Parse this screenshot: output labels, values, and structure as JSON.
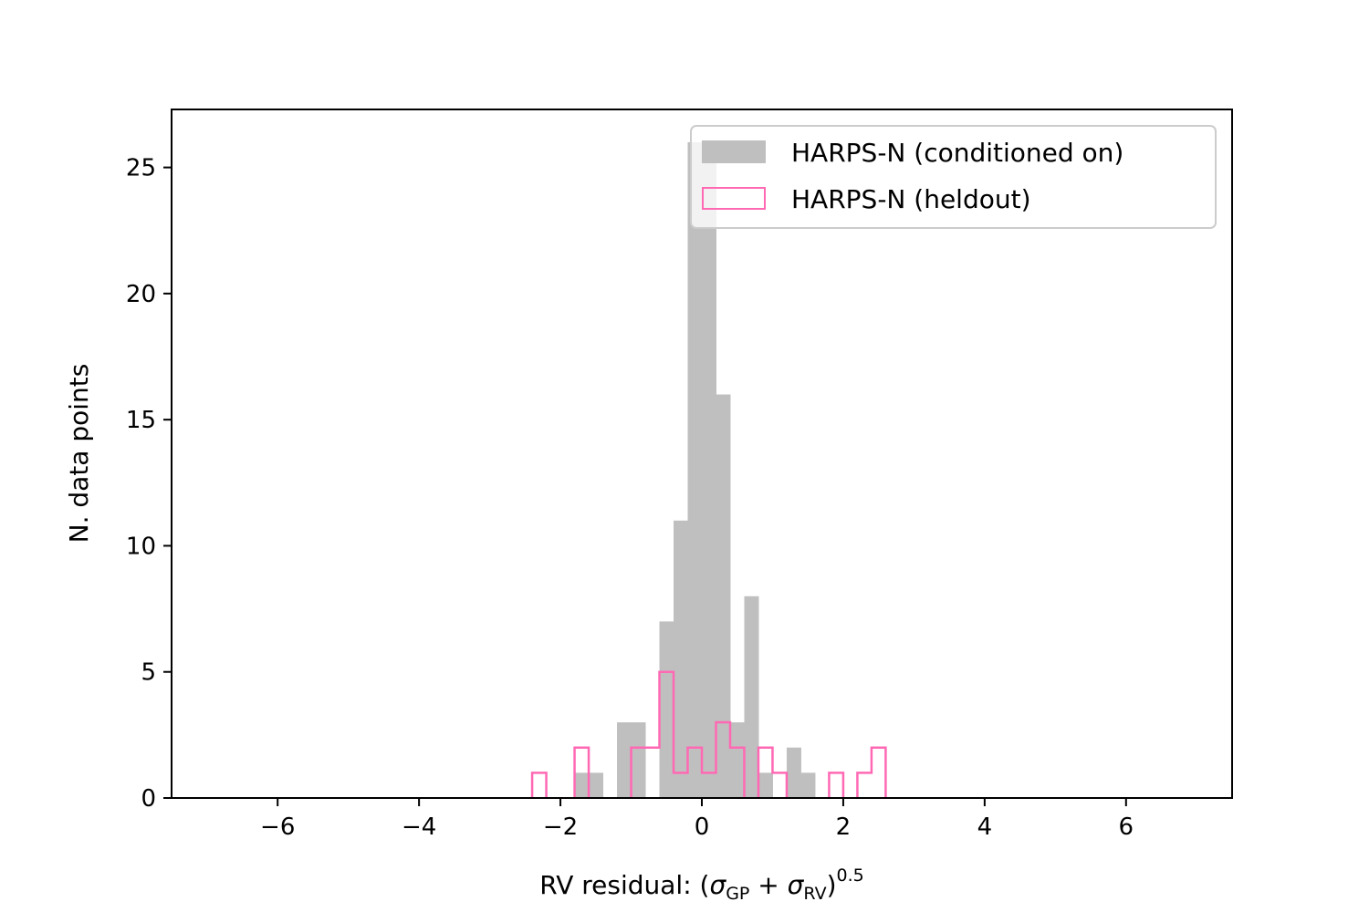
{
  "chart_data": {
    "type": "histogram",
    "xlabel": {
      "prefix": "RV residual: (",
      "sigma1": "σ",
      "sub1": "GP",
      "plus": " + ",
      "sigma2": "σ",
      "sub2": "RV",
      "close": ")",
      "exponent": "0.5"
    },
    "ylabel": "N. data points",
    "xlim": [
      -7.5,
      7.5
    ],
    "ylim": [
      0,
      27.3
    ],
    "xticks": [
      -6,
      -4,
      -2,
      0,
      2,
      4,
      6
    ],
    "xtick_labels": [
      "−6",
      "−4",
      "−2",
      "0",
      "2",
      "4",
      "6"
    ],
    "yticks": [
      0,
      5,
      10,
      15,
      20,
      25
    ],
    "ytick_labels": [
      "0",
      "5",
      "10",
      "15",
      "20",
      "25"
    ],
    "legend_position": "top-right",
    "series": [
      {
        "name": "HARPS-N (conditioned on)",
        "style": "filled",
        "color": "#bfbfbf",
        "bins": [
          {
            "x0": -1.8,
            "x1": -1.6,
            "count": 1
          },
          {
            "x0": -1.6,
            "x1": -1.4,
            "count": 1
          },
          {
            "x0": -1.2,
            "x1": -1.0,
            "count": 3
          },
          {
            "x0": -1.0,
            "x1": -0.8,
            "count": 3
          },
          {
            "x0": -0.6,
            "x1": -0.4,
            "count": 7
          },
          {
            "x0": -0.4,
            "x1": -0.2,
            "count": 11
          },
          {
            "x0": -0.2,
            "x1": 0.0,
            "count": 26
          },
          {
            "x0": 0.0,
            "x1": 0.2,
            "count": 26
          },
          {
            "x0": 0.2,
            "x1": 0.4,
            "count": 16
          },
          {
            "x0": 0.4,
            "x1": 0.6,
            "count": 3
          },
          {
            "x0": 0.6,
            "x1": 0.8,
            "count": 8
          },
          {
            "x0": 0.8,
            "x1": 1.0,
            "count": 1
          },
          {
            "x0": 1.2,
            "x1": 1.4,
            "count": 2
          },
          {
            "x0": 1.4,
            "x1": 1.6,
            "count": 1
          }
        ]
      },
      {
        "name": "HARPS-N (heldout)",
        "style": "step",
        "color": "#ff69b4",
        "bins": [
          {
            "x0": -2.4,
            "x1": -2.2,
            "count": 1
          },
          {
            "x0": -1.8,
            "x1": -1.6,
            "count": 2
          },
          {
            "x0": -1.0,
            "x1": -0.8,
            "count": 2
          },
          {
            "x0": -0.8,
            "x1": -0.6,
            "count": 2
          },
          {
            "x0": -0.6,
            "x1": -0.4,
            "count": 5
          },
          {
            "x0": -0.4,
            "x1": -0.2,
            "count": 1
          },
          {
            "x0": -0.2,
            "x1": 0.0,
            "count": 2
          },
          {
            "x0": 0.0,
            "x1": 0.2,
            "count": 1
          },
          {
            "x0": 0.2,
            "x1": 0.4,
            "count": 3
          },
          {
            "x0": 0.4,
            "x1": 0.6,
            "count": 2
          },
          {
            "x0": 0.8,
            "x1": 1.0,
            "count": 2
          },
          {
            "x0": 1.0,
            "x1": 1.2,
            "count": 1
          },
          {
            "x0": 1.8,
            "x1": 2.0,
            "count": 1
          },
          {
            "x0": 2.2,
            "x1": 2.4,
            "count": 1
          },
          {
            "x0": 2.4,
            "x1": 2.6,
            "count": 2
          }
        ]
      }
    ]
  }
}
